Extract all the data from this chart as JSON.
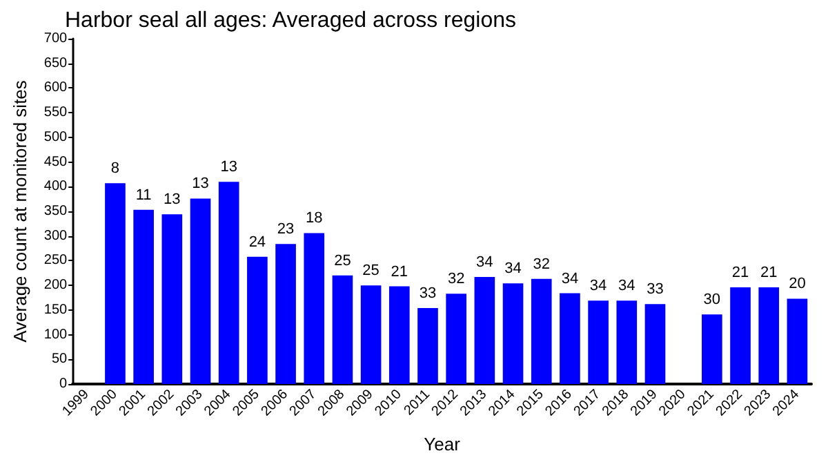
{
  "chart_data": {
    "type": "bar",
    "title": "Harbor seal all ages: Averaged across regions",
    "xlabel": "Year",
    "ylabel": "Average count at monitored sites",
    "categories": [
      "1999",
      "2000",
      "2001",
      "2002",
      "2003",
      "2004",
      "2005",
      "2006",
      "2007",
      "2008",
      "2009",
      "2010",
      "2011",
      "2012",
      "2013",
      "2014",
      "2015",
      "2016",
      "2017",
      "2018",
      "2019",
      "2020",
      "2021",
      "2022",
      "2023",
      "2024"
    ],
    "values": [
      null,
      407,
      353,
      344,
      376,
      410,
      258,
      284,
      306,
      220,
      200,
      198,
      154,
      183,
      217,
      204,
      213,
      184,
      169,
      169,
      162,
      null,
      141,
      196,
      196,
      173
    ],
    "color": "#0000ff",
    "ylim": [
      0,
      700
    ],
    "yticks": [
      0,
      50,
      100,
      150,
      200,
      250,
      300,
      350,
      400,
      450,
      500,
      550,
      600,
      650,
      700
    ],
    "grid": false,
    "annotations": [
      {
        "text": "8",
        "x": "2000",
        "y": 407
      },
      {
        "text": "11",
        "x": "2001",
        "y": 353
      },
      {
        "text": "13",
        "x": "2002",
        "y": 344
      },
      {
        "text": "13",
        "x": "2003",
        "y": 376
      },
      {
        "text": "13",
        "x": "2004",
        "y": 410
      },
      {
        "text": "24",
        "x": "2005",
        "y": 258
      },
      {
        "text": "23",
        "x": "2006",
        "y": 284
      },
      {
        "text": "18",
        "x": "2007",
        "y": 306
      },
      {
        "text": "25",
        "x": "2008",
        "y": 220
      },
      {
        "text": "25",
        "x": "2009",
        "y": 200
      },
      {
        "text": "21",
        "x": "2010",
        "y": 198
      },
      {
        "text": "33",
        "x": "2011",
        "y": 154
      },
      {
        "text": "32",
        "x": "2012",
        "y": 183
      },
      {
        "text": "34",
        "x": "2013",
        "y": 217
      },
      {
        "text": "34",
        "x": "2014",
        "y": 204
      },
      {
        "text": "32",
        "x": "2015",
        "y": 213
      },
      {
        "text": "34",
        "x": "2016",
        "y": 184
      },
      {
        "text": "34",
        "x": "2017",
        "y": 169
      },
      {
        "text": "34",
        "x": "2018",
        "y": 169
      },
      {
        "text": "33",
        "x": "2019",
        "y": 162
      },
      {
        "text": "30",
        "x": "2021",
        "y": 141
      },
      {
        "text": "21",
        "x": "2022",
        "y": 196
      },
      {
        "text": "21",
        "x": "2023",
        "y": 196
      },
      {
        "text": "20",
        "x": "2024",
        "y": 173
      }
    ]
  }
}
